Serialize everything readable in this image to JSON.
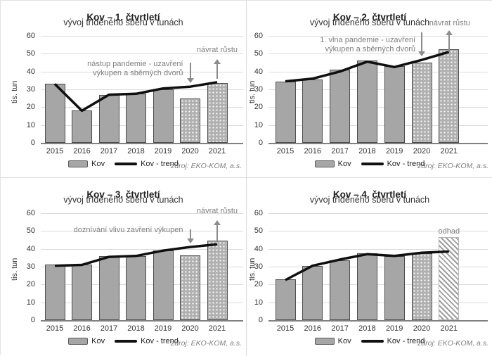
{
  "figure": {
    "legend": {
      "bar_label": "Kov",
      "trend_label": "Kov - trend"
    },
    "source": "zdroj: EKO-KOM, a.s.",
    "colors": {
      "bar_fill": "#a6a6a6",
      "bar_border": "#4d4d4d",
      "trend_line": "#0f0f0f",
      "annotation_text": "#7f7f7f",
      "arrow": "#8c8c8c",
      "gridline": "#dcdcdc"
    }
  },
  "chart_data": [
    {
      "type": "bar",
      "title": "Kov – 1. čtvrtletí",
      "subtitle": "vývoj tříděného sběru v tunách",
      "ylabel": "tis. tun",
      "ylim": [
        0,
        60
      ],
      "yticks": [
        0,
        10,
        20,
        30,
        40,
        50,
        60
      ],
      "grid": true,
      "legend_position": "bottom",
      "categories": [
        "2015",
        "2016",
        "2017",
        "2018",
        "2019",
        "2020",
        "2021"
      ],
      "series": [
        {
          "name": "Kov",
          "kind": "bar",
          "values": [
            33,
            18,
            27,
            27.5,
            30,
            25,
            33.5
          ],
          "bar_styles": [
            "solid",
            "solid",
            "solid",
            "solid",
            "solid",
            "dotted",
            "dotted"
          ]
        },
        {
          "name": "Kov - trend",
          "kind": "line",
          "values": [
            33,
            18,
            27,
            27.5,
            30.5,
            31.5,
            34
          ]
        }
      ],
      "annotations": [
        {
          "lines": [
            "nástup pandemie - uzavření",
            "výkupen a sběrných dvorů"
          ],
          "arrow": "down",
          "year": "2020",
          "arrow_values": [
            33.5,
            45
          ],
          "label_value": 41.5,
          "label_align": "left"
        },
        {
          "lines": [
            "návrat růstu"
          ],
          "arrow": "up",
          "year": "2021",
          "arrow_values": [
            36,
            47
          ],
          "label_value": 52,
          "label_align": "right"
        }
      ]
    },
    {
      "type": "bar",
      "title": "Kov – 2. čtvrtletí",
      "subtitle": "vývoj tříděného sběru v tunách",
      "ylabel": "tis. tun",
      "ylim": [
        0,
        60
      ],
      "yticks": [
        0,
        10,
        20,
        30,
        40,
        50,
        60
      ],
      "grid": true,
      "legend_position": "bottom",
      "categories": [
        "2015",
        "2016",
        "2017",
        "2018",
        "2019",
        "2020",
        "2021"
      ],
      "series": [
        {
          "name": "Kov",
          "kind": "bar",
          "values": [
            34.5,
            35.5,
            41,
            46,
            43,
            45,
            52.5
          ],
          "bar_styles": [
            "solid",
            "solid",
            "solid",
            "solid",
            "solid",
            "dotted",
            "dotted"
          ]
        },
        {
          "name": "Kov - trend",
          "kind": "line",
          "values": [
            34.5,
            36,
            40,
            45.5,
            42.5,
            46.5,
            51
          ]
        }
      ],
      "annotations": [
        {
          "lines": [
            "1. vlna pandemie - uzavření",
            "výkupen a sběrných dvorů"
          ],
          "arrow": "down",
          "year": "2020",
          "arrow_values": [
            48.5,
            62
          ],
          "label_value": 55,
          "label_align": "left"
        },
        {
          "lines": [
            "návrat růstu"
          ],
          "arrow": "up",
          "year": "2021",
          "arrow_values": [
            51,
            63
          ],
          "label_value": 67,
          "label_align": "right"
        }
      ]
    },
    {
      "type": "bar",
      "title": "Kov – 3. čtvrtletí",
      "subtitle": "vývoj tříděného sběru v tunách",
      "ylabel": "tis. tun",
      "ylim": [
        0,
        60
      ],
      "yticks": [
        0,
        10,
        20,
        30,
        40,
        50,
        60
      ],
      "grid": true,
      "legend_position": "bottom",
      "categories": [
        "2015",
        "2016",
        "2017",
        "2018",
        "2019",
        "2020",
        "2021"
      ],
      "series": [
        {
          "name": "Kov",
          "kind": "bar",
          "values": [
            31,
            31,
            36,
            36,
            39,
            36.5,
            44.5
          ],
          "bar_styles": [
            "solid",
            "solid",
            "solid",
            "solid",
            "solid",
            "dotted",
            "dotted"
          ]
        },
        {
          "name": "Kov - trend",
          "kind": "line",
          "values": [
            30.5,
            31,
            35.5,
            36,
            39,
            41,
            42.5
          ]
        }
      ],
      "annotations": [
        {
          "lines": [
            "doznívání vlivu zavření výkupen"
          ],
          "arrow": "down",
          "year": "2020",
          "arrow_values": [
            43,
            51
          ],
          "label_value": 50.5,
          "label_align": "left"
        },
        {
          "lines": [
            "návrat růstu"
          ],
          "arrow": "up",
          "year": "2021",
          "arrow_values": [
            44,
            56
          ],
          "label_value": 61,
          "label_align": "right"
        }
      ]
    },
    {
      "type": "bar",
      "title": "Kov – 4. čtvrtletí",
      "subtitle": "vývoj tříděného sběru v tunách",
      "ylabel": "tis. tun",
      "ylim": [
        0,
        60
      ],
      "yticks": [
        0,
        10,
        20,
        30,
        40,
        50,
        60
      ],
      "grid": true,
      "legend_position": "bottom",
      "categories": [
        "2015",
        "2016",
        "2017",
        "2018",
        "2019",
        "2020",
        "2021"
      ],
      "series": [
        {
          "name": "Kov",
          "kind": "bar",
          "values": [
            23,
            30.5,
            33.5,
            37.5,
            36,
            37.5,
            46.5
          ],
          "bar_styles": [
            "solid",
            "solid",
            "solid",
            "solid",
            "solid",
            "dotted",
            "hatched"
          ]
        },
        {
          "name": "Kov - trend",
          "kind": "line",
          "values": [
            22.5,
            30.5,
            34,
            37,
            36,
            37.8,
            38.5
          ]
        }
      ],
      "annotations": [
        {
          "lines": [
            "odhad"
          ],
          "arrow": null,
          "year": "2021",
          "label_value": 49.5,
          "label_align": "center"
        }
      ]
    }
  ]
}
